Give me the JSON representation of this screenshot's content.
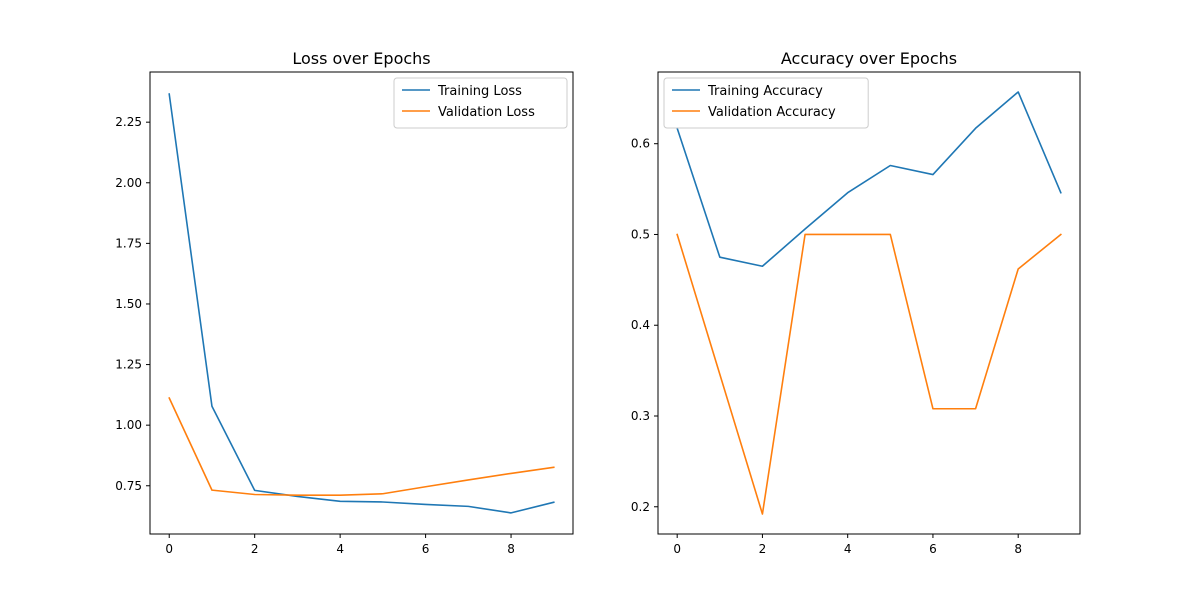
{
  "chart_data": [
    {
      "type": "line",
      "title": "Loss over Epochs",
      "xlabel": "",
      "ylabel": "",
      "xlim": [
        -0.45,
        9.45
      ],
      "ylim": [
        0.551,
        2.457
      ],
      "xticks": [
        0,
        2,
        4,
        6,
        8
      ],
      "yticks": [
        0.75,
        1.0,
        1.25,
        1.5,
        1.75,
        2.0,
        2.25
      ],
      "ytick_labels": [
        "0.75",
        "1.00",
        "1.25",
        "1.50",
        "1.75",
        "2.00",
        "2.25"
      ],
      "grid": false,
      "legend_position": "top-right",
      "x": [
        0,
        1,
        2,
        3,
        4,
        5,
        6,
        7,
        8,
        9
      ],
      "series": [
        {
          "name": "Training Loss",
          "color": "#1f77b4",
          "values": [
            2.366,
            1.078,
            0.731,
            0.706,
            0.686,
            0.683,
            0.673,
            0.665,
            0.638,
            0.682
          ]
        },
        {
          "name": "Validation Loss",
          "color": "#ff7f0e",
          "values": [
            1.112,
            0.732,
            0.714,
            0.711,
            0.711,
            0.717,
            0.746,
            0.774,
            0.801,
            0.826
          ]
        }
      ]
    },
    {
      "type": "line",
      "title": "Accuracy over Epochs",
      "xlabel": "",
      "ylabel": "",
      "xlim": [
        -0.45,
        9.45
      ],
      "ylim": [
        0.17,
        0.679
      ],
      "xticks": [
        0,
        2,
        4,
        6,
        8
      ],
      "yticks": [
        0.2,
        0.3,
        0.4,
        0.5,
        0.6
      ],
      "ytick_labels": [
        "0.2",
        "0.3",
        "0.4",
        "0.5",
        "0.6"
      ],
      "grid": false,
      "legend_position": "top-left",
      "x": [
        0,
        1,
        2,
        3,
        4,
        5,
        6,
        7,
        8,
        9
      ],
      "series": [
        {
          "name": "Training Accuracy",
          "color": "#1f77b4",
          "values": [
            0.617,
            0.475,
            0.465,
            0.506,
            0.546,
            0.576,
            0.566,
            0.617,
            0.657,
            0.546
          ]
        },
        {
          "name": "Validation Accuracy",
          "color": "#ff7f0e",
          "values": [
            0.5,
            0.346,
            0.192,
            0.5,
            0.5,
            0.5,
            0.308,
            0.308,
            0.462,
            0.5
          ]
        }
      ]
    }
  ]
}
